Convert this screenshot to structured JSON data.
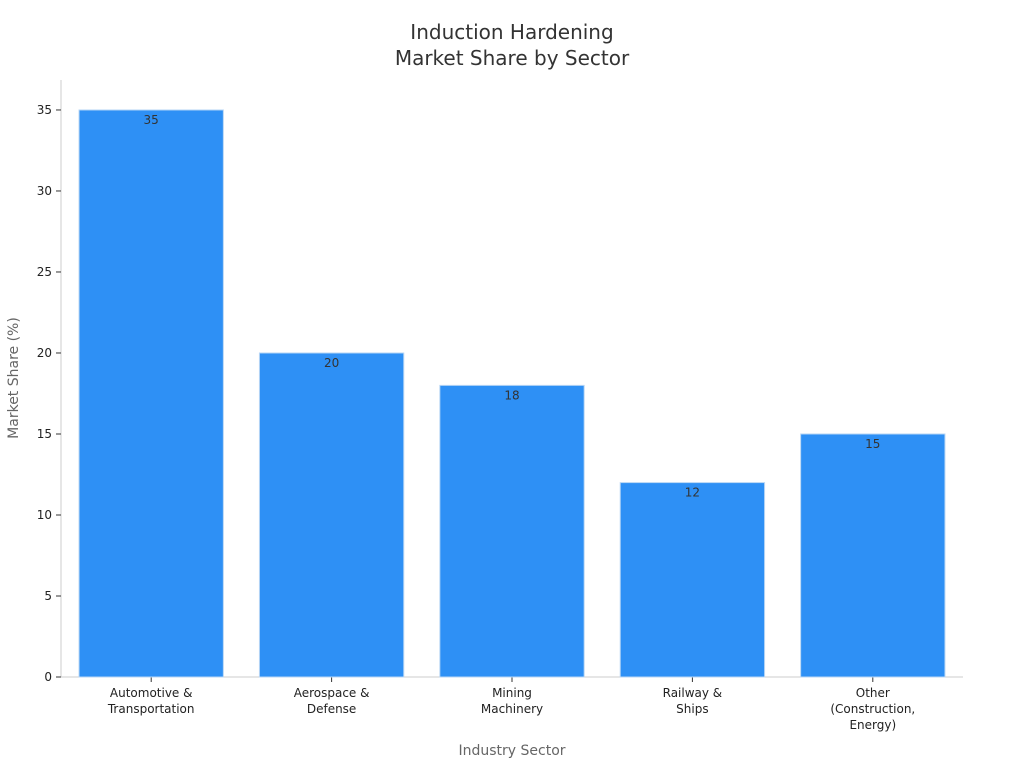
{
  "chart_data": {
    "type": "bar",
    "title": "Induction Hardening\nMarket Share by Sector",
    "x_label": "Industry Sector",
    "y_label": "Market Share (%)",
    "categories": [
      "Automotive &\nTransportation",
      "Aerospace &\nDefense",
      "Mining\nMachinery",
      "Railway &\nShips",
      "Other\n(Construction,\nEnergy)"
    ],
    "values": [
      35,
      20,
      18,
      12,
      15
    ],
    "color": "#2e90f5",
    "ylim": [
      0,
      36.85
    ],
    "yticks": [
      0,
      5,
      10,
      15,
      20,
      25,
      30,
      35
    ],
    "grid": false
  }
}
